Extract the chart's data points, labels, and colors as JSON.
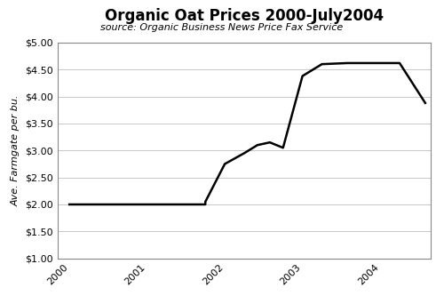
{
  "title": "Organic Oat Prices 2000-July2004",
  "subtitle": "source: Organic Business News Price Fax Service",
  "ylabel": "Ave. Farmgate per bu.",
  "xlabel": "",
  "background_color": "#ffffff",
  "line_color": "#000000",
  "grid_color": "#c8c8c8",
  "ylim": [
    1.0,
    5.0
  ],
  "yticks": [
    1.0,
    1.5,
    2.0,
    2.5,
    3.0,
    3.5,
    4.0,
    4.5,
    5.0
  ],
  "xtick_positions": [
    2000,
    2001,
    2002,
    2003,
    2004
  ],
  "xtick_labels": [
    "2000",
    "2001",
    "2002",
    "2003",
    "2004"
  ],
  "xlim_left": 1999.85,
  "xlim_right": 2004.65,
  "x_values": [
    2000.0,
    2001.75,
    2001.75,
    2002.0,
    2002.0,
    2002.25,
    2002.25,
    2002.42,
    2002.42,
    2002.58,
    2002.58,
    2002.75,
    2002.75,
    2003.0,
    2003.0,
    2003.25,
    2003.25,
    2003.58,
    2003.58,
    2004.25,
    2004.25,
    2004.58,
    2004.58
  ],
  "y_values": [
    2.0,
    2.0,
    2.05,
    2.75,
    2.75,
    2.95,
    2.95,
    3.1,
    3.1,
    3.15,
    3.15,
    3.05,
    3.05,
    4.38,
    4.38,
    4.6,
    4.6,
    4.62,
    4.62,
    4.62,
    4.62,
    3.88,
    3.88
  ],
  "title_fontsize": 12,
  "subtitle_fontsize": 8,
  "ylabel_fontsize": 8,
  "tick_fontsize": 8,
  "line_width": 1.8
}
